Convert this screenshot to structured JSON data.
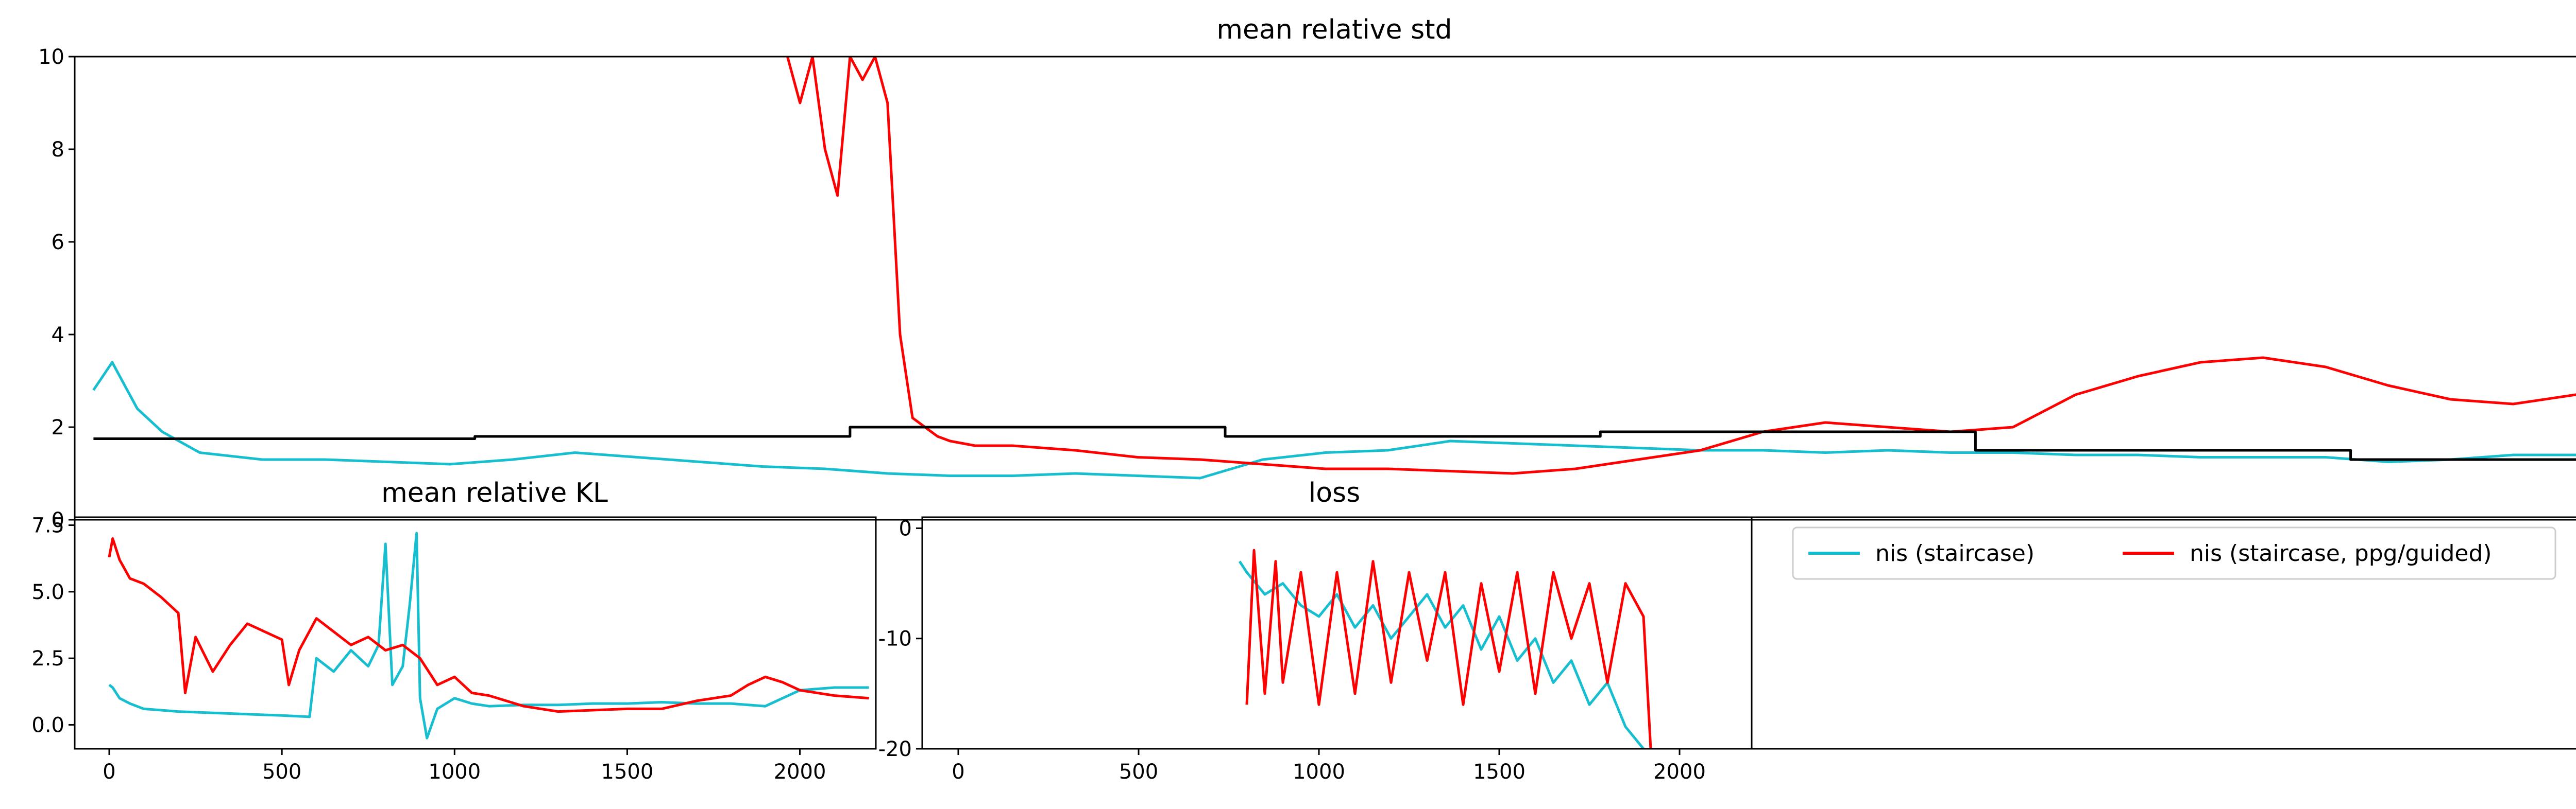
{
  "colors": {
    "staircase": "#17becf",
    "guided": "#ff0000",
    "reference": "#000000"
  },
  "legend": {
    "entries": [
      {
        "label": "nis (staircase)",
        "color": "#17becf"
      },
      {
        "label": "nis (staircase, ppg/guided)",
        "color": "#ff0000"
      }
    ]
  },
  "chart_data": [
    {
      "id": "std",
      "type": "line",
      "title": "mean relative std",
      "xlim": [
        200,
        2220
      ],
      "ylim": [
        0,
        10
      ],
      "yticks": [
        0,
        2,
        4,
        6,
        8,
        10
      ],
      "series": [
        {
          "name": "nis (staircase)",
          "color": "#17becf",
          "x": [
            215,
            230,
            250,
            270,
            300,
            350,
            400,
            450,
            500,
            550,
            600,
            650,
            700,
            750,
            800,
            850,
            900,
            950,
            1000,
            1050,
            1100,
            1150,
            1200,
            1250,
            1300,
            1350,
            1400,
            1450,
            1500,
            1550,
            1600,
            1650,
            1700,
            1750,
            1800,
            1850,
            1900,
            1950,
            2000,
            2050,
            2100,
            2150,
            2200,
            2220
          ],
          "y": [
            2.8,
            3.4,
            2.4,
            1.9,
            1.45,
            1.3,
            1.3,
            1.25,
            1.2,
            1.3,
            1.45,
            1.35,
            1.25,
            1.15,
            1.1,
            1.0,
            0.95,
            0.95,
            1.0,
            0.95,
            0.9,
            1.3,
            1.45,
            1.5,
            1.7,
            1.65,
            1.6,
            1.55,
            1.5,
            1.5,
            1.45,
            1.5,
            1.45,
            1.45,
            1.4,
            1.4,
            1.35,
            1.35,
            1.35,
            1.25,
            1.3,
            1.4,
            1.4,
            1.5
          ]
        },
        {
          "name": "nis (staircase, ppg/guided)",
          "color": "#ff0000",
          "x": [
            770,
            780,
            790,
            800,
            810,
            820,
            830,
            840,
            850,
            860,
            870,
            880,
            890,
            900,
            920,
            950,
            1000,
            1050,
            1100,
            1150,
            1200,
            1250,
            1300,
            1350,
            1400,
            1450,
            1500,
            1550,
            1600,
            1650,
            1700,
            1750,
            1800,
            1850,
            1900,
            1950,
            2000,
            2050,
            2100,
            2150,
            2200,
            2220
          ],
          "y": [
            10,
            9.0,
            10,
            8.0,
            7.0,
            10,
            9.5,
            10,
            9.0,
            4.0,
            2.2,
            2.0,
            1.8,
            1.7,
            1.6,
            1.6,
            1.5,
            1.35,
            1.3,
            1.2,
            1.1,
            1.1,
            1.05,
            1.0,
            1.1,
            1.3,
            1.5,
            1.9,
            2.1,
            2.0,
            1.9,
            2.0,
            2.7,
            3.1,
            3.4,
            3.5,
            3.3,
            2.9,
            2.6,
            2.5,
            2.7,
            2.8
          ]
        },
        {
          "name": "",
          "color": "#000000",
          "step": true,
          "x": [
            215,
            520,
            820,
            1120,
            1420,
            1720,
            2020,
            2220
          ],
          "y": [
            1.75,
            1.8,
            2.0,
            1.8,
            1.9,
            1.5,
            1.3,
            1.55
          ]
        }
      ]
    },
    {
      "id": "kl",
      "type": "line",
      "title": "mean relative KL",
      "xlim": [
        -100,
        2220
      ],
      "ylim": [
        -0.9,
        7.8
      ],
      "xticks": [
        0,
        500,
        1000,
        1500,
        2000
      ],
      "yticks": [
        0.0,
        2.5,
        5.0,
        7.5
      ],
      "ytick_labels": [
        "0.0",
        "2.5",
        "5.0",
        "7.5"
      ],
      "series": [
        {
          "name": "nis (staircase)",
          "color": "#17becf",
          "x": [
            0,
            10,
            30,
            60,
            100,
            150,
            200,
            300,
            400,
            500,
            580,
            600,
            650,
            700,
            750,
            780,
            800,
            820,
            850,
            870,
            890,
            900,
            920,
            950,
            1000,
            1050,
            1100,
            1200,
            1300,
            1400,
            1500,
            1600,
            1700,
            1800,
            1900,
            2000,
            2100,
            2200
          ],
          "y": [
            1.5,
            1.4,
            1.0,
            0.8,
            0.6,
            0.55,
            0.5,
            0.45,
            0.4,
            0.35,
            0.3,
            2.5,
            2.0,
            2.8,
            2.2,
            3.0,
            6.8,
            1.5,
            2.2,
            4.5,
            7.2,
            1.0,
            -0.5,
            0.6,
            1.0,
            0.8,
            0.7,
            0.75,
            0.75,
            0.8,
            0.8,
            0.85,
            0.8,
            0.8,
            0.7,
            1.3,
            1.4,
            1.4
          ]
        },
        {
          "name": "nis (staircase, ppg/guided)",
          "color": "#ff0000",
          "x": [
            0,
            10,
            30,
            60,
            100,
            150,
            200,
            220,
            250,
            300,
            350,
            400,
            450,
            500,
            520,
            550,
            600,
            650,
            700,
            750,
            800,
            850,
            900,
            950,
            1000,
            1050,
            1100,
            1150,
            1200,
            1300,
            1400,
            1500,
            1600,
            1700,
            1800,
            1850,
            1900,
            1950,
            2000,
            2100,
            2200
          ],
          "y": [
            6.3,
            7.0,
            6.2,
            5.5,
            5.3,
            4.8,
            4.2,
            1.2,
            3.3,
            2.0,
            3.0,
            3.8,
            3.5,
            3.2,
            1.5,
            2.8,
            4.0,
            3.5,
            3.0,
            3.3,
            2.8,
            3.0,
            2.5,
            1.5,
            1.8,
            1.2,
            1.1,
            0.9,
            0.7,
            0.5,
            0.55,
            0.6,
            0.6,
            0.9,
            1.1,
            1.5,
            1.8,
            1.6,
            1.3,
            1.1,
            1.0
          ]
        }
      ]
    },
    {
      "id": "loss",
      "type": "line",
      "title": "loss",
      "xlim": [
        -100,
        2200
      ],
      "ylim": [
        -20,
        1
      ],
      "xticks": [
        0,
        500,
        1000,
        1500,
        2000
      ],
      "yticks": [
        0,
        -10,
        -20
      ],
      "series": [
        {
          "name": "nis (staircase)",
          "color": "#17becf",
          "x": [
            780,
            800,
            850,
            900,
            950,
            1000,
            1050,
            1100,
            1150,
            1200,
            1250,
            1300,
            1350,
            1400,
            1450,
            1500,
            1550,
            1600,
            1650,
            1700,
            1750,
            1800,
            1850,
            1900
          ],
          "y": [
            -3,
            -4,
            -6,
            -5,
            -7,
            -8,
            -6,
            -9,
            -7,
            -10,
            -8,
            -6,
            -9,
            -7,
            -11,
            -8,
            -12,
            -10,
            -14,
            -12,
            -16,
            -14,
            -18,
            -20
          ]
        },
        {
          "name": "nis (staircase, ppg/guided)",
          "color": "#ff0000",
          "x": [
            800,
            820,
            850,
            880,
            900,
            950,
            1000,
            1050,
            1100,
            1150,
            1200,
            1250,
            1300,
            1350,
            1400,
            1450,
            1500,
            1550,
            1600,
            1650,
            1700,
            1750,
            1800,
            1850,
            1900,
            1920
          ],
          "y": [
            -16,
            -2,
            -15,
            -3,
            -14,
            -4,
            -16,
            -4,
            -15,
            -3,
            -14,
            -4,
            -12,
            -4,
            -16,
            -5,
            -13,
            -4,
            -15,
            -4,
            -10,
            -5,
            -14,
            -5,
            -8,
            -20
          ]
        }
      ]
    }
  ]
}
